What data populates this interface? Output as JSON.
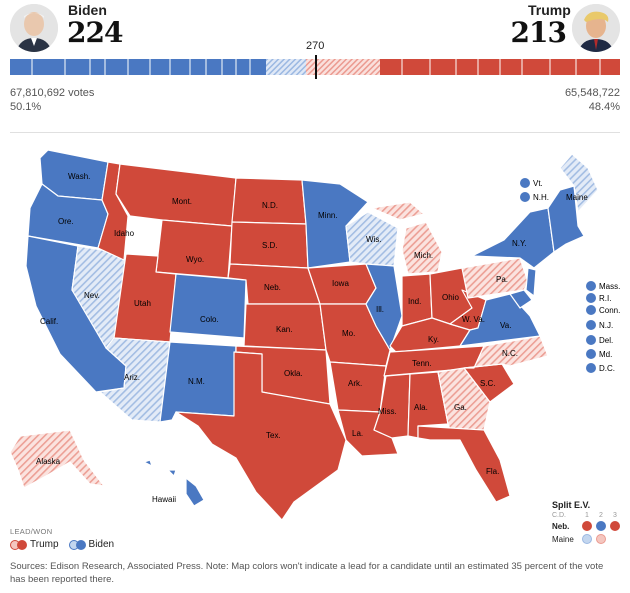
{
  "header": {
    "biden": {
      "name": "Biden",
      "ev": "224",
      "votes": "67,810,692 votes",
      "pct": "50.1%"
    },
    "trump": {
      "name": "Trump",
      "ev": "213",
      "votes": "65,548,722",
      "pct": "48.4%"
    },
    "threshold": "270"
  },
  "colors": {
    "dem": "#4a78c2",
    "rep": "#d0493a",
    "dem_light": "#c3d6ef",
    "rep_light": "#f4c6bf"
  },
  "states": {
    "wash": "Wash.",
    "ore": "Ore.",
    "calif": "Calif.",
    "nev": "Nev.",
    "idaho": "Idaho",
    "mont": "Mont.",
    "wyo": "Wyo.",
    "utah": "Utah",
    "colo": "Colo.",
    "ariz": "Ariz.",
    "nm": "N.M.",
    "nd": "N.D.",
    "sd": "S.D.",
    "neb": "Neb.",
    "kan": "Kan.",
    "okla": "Okla.",
    "tex": "Tex.",
    "minn": "Minn.",
    "iowa": "Iowa",
    "mo": "Mo.",
    "ark": "Ark.",
    "la": "La.",
    "wis": "Wis.",
    "ill": "Ill.",
    "mich": "Mich.",
    "ind": "Ind.",
    "ohio": "Ohio",
    "ky": "Ky.",
    "tenn": "Tenn.",
    "miss": "Miss.",
    "ala": "Ala.",
    "ga": "Ga.",
    "fla": "Fla.",
    "sc": "S.C.",
    "nc": "N.C.",
    "va": "Va.",
    "wva": "W. Va.",
    "pa": "Pa.",
    "ny": "N.Y.",
    "maine": "Maine",
    "alaska": "Alaska",
    "hawaii": "Hawaii"
  },
  "small_states": {
    "vt": "Vt.",
    "nh": "N.H.",
    "mass": "Mass.",
    "ri": "R.I.",
    "conn": "Conn.",
    "nj": "N.J.",
    "del": "Del.",
    "md": "Md.",
    "dc": "D.C."
  },
  "split_ev": {
    "title": "Split E.V.",
    "header_cd": "C.D.",
    "cols": [
      "1",
      "2",
      "3"
    ],
    "neb": "Neb.",
    "maine": "Maine"
  },
  "legend": {
    "title": "LEAD/WON",
    "trump": "Trump",
    "biden": "Biden"
  },
  "footnote": "Sources: Edison Research, Associated Press. Note: Map colors won't indicate a lead for a candidate until an estimated 35 percent of the vote has been reported there."
}
